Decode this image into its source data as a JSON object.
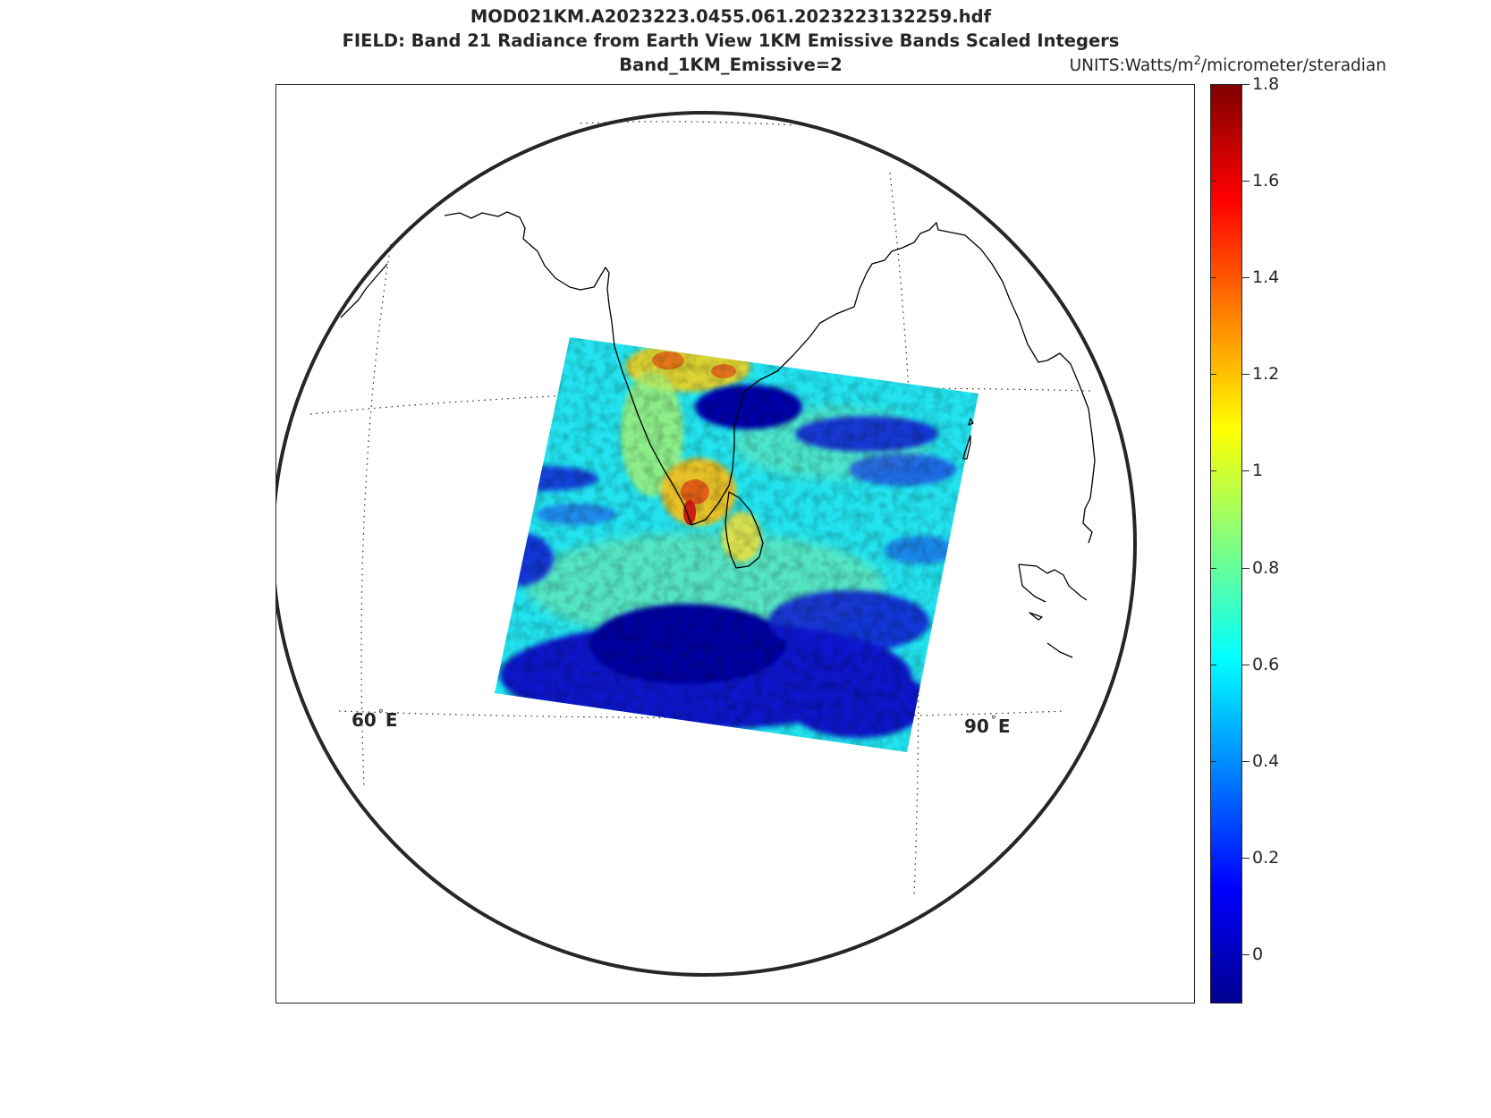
{
  "title": {
    "line1": "MOD021KM.A2023223.0455.061.2023223132259.hdf",
    "line2": "FIELD: Band 21 Radiance from Earth View 1KM Emissive Bands Scaled Integers",
    "line3": "Band_1KM_Emissive=2"
  },
  "units": {
    "prefix": "UNITS:Watts/m",
    "exponent": "2",
    "suffix": "/micrometer/steradian"
  },
  "colorbar": {
    "range": [
      -0.1,
      1.8
    ],
    "colormap": "jet",
    "ticks": [
      "0",
      "0.2",
      "0.4",
      "0.6",
      "0.8",
      "1",
      "1.2",
      "1.4",
      "1.6",
      "1.8"
    ]
  },
  "map": {
    "projection": "orthographic",
    "grid": "dotted",
    "lon_labels": [
      {
        "value": "60",
        "deg": "°",
        "dir": "E"
      },
      {
        "value": "90",
        "deg": "°",
        "dir": "E"
      }
    ],
    "granule_colors": {
      "background": "#22e3ef",
      "cloud": "#0c1ad2",
      "cloud_deep": "#0000a8",
      "warm_land": "#f0d020",
      "hot_land": "#e61a10",
      "green": "#7fe8a0"
    },
    "coastline_color": "#000000"
  }
}
